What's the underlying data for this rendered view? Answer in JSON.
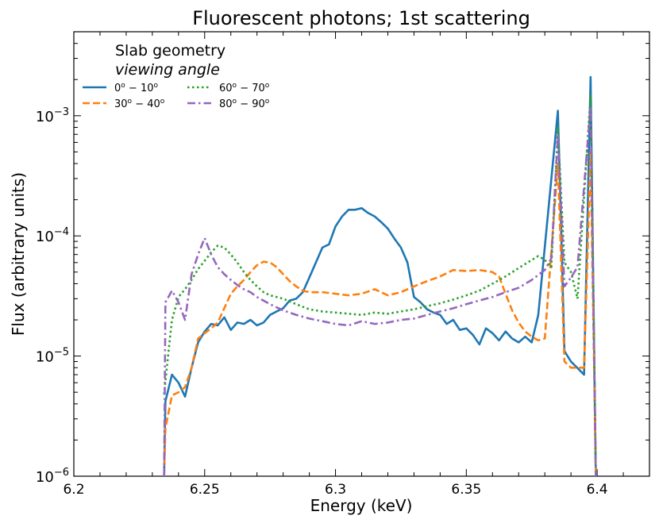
{
  "chart_data": {
    "type": "line",
    "title": "Fluorescent photons; 1st scattering",
    "xlabel": "Energy (keV)",
    "ylabel": "Flux (arbitrary units)",
    "xscale": "linear",
    "yscale": "log",
    "xlim": [
      6.2,
      6.42
    ],
    "ylim": [
      1e-06,
      0.005
    ],
    "xticks": [
      6.2,
      6.25,
      6.3,
      6.35,
      6.4
    ],
    "xtick_labels": [
      "6.2",
      "6.25",
      "6.3",
      "6.35",
      "6.4"
    ],
    "yticks": [
      1e-06,
      1e-05,
      0.0001,
      0.001
    ],
    "ytick_labels": [
      {
        "base": "10",
        "exp": "−6"
      },
      {
        "base": "10",
        "exp": "−5"
      },
      {
        "base": "10",
        "exp": "−4"
      },
      {
        "base": "10",
        "exp": "−3"
      }
    ],
    "legend": {
      "title_line1": "Slab geometry",
      "title_line2": "viewing angle",
      "placement": "top-left",
      "ncol": 2
    },
    "series": [
      {
        "name": "0° − 10°",
        "label_parts": [
          "0",
          "o",
          " − 10",
          "o"
        ],
        "color": "#1f77b4",
        "style": "solid",
        "points": [
          [
            6.2345,
            1e-06
          ],
          [
            6.235,
            4.2e-06
          ],
          [
            6.2375,
            7e-06
          ],
          [
            6.24,
            6e-06
          ],
          [
            6.2425,
            4.6e-06
          ],
          [
            6.245,
            8e-06
          ],
          [
            6.2475,
            1.3e-05
          ],
          [
            6.25,
            1.6e-05
          ],
          [
            6.2525,
            1.85e-05
          ],
          [
            6.255,
            1.8e-05
          ],
          [
            6.2575,
            2.1e-05
          ],
          [
            6.26,
            1.65e-05
          ],
          [
            6.2625,
            1.9e-05
          ],
          [
            6.265,
            1.85e-05
          ],
          [
            6.2675,
            2e-05
          ],
          [
            6.27,
            1.8e-05
          ],
          [
            6.2725,
            1.9e-05
          ],
          [
            6.275,
            2.2e-05
          ],
          [
            6.2775,
            2.35e-05
          ],
          [
            6.28,
            2.5e-05
          ],
          [
            6.2825,
            2.9e-05
          ],
          [
            6.285,
            3e-05
          ],
          [
            6.2875,
            3.4e-05
          ],
          [
            6.29,
            4.5e-05
          ],
          [
            6.2925,
            6e-05
          ],
          [
            6.295,
            8e-05
          ],
          [
            6.2975,
            8.5e-05
          ],
          [
            6.3,
            0.00012
          ],
          [
            6.3025,
            0.000145
          ],
          [
            6.305,
            0.000165
          ],
          [
            6.3075,
            0.000165
          ],
          [
            6.31,
            0.00017
          ],
          [
            6.3125,
            0.000155
          ],
          [
            6.315,
            0.000145
          ],
          [
            6.3175,
            0.00013
          ],
          [
            6.32,
            0.000115
          ],
          [
            6.3225,
            9.5e-05
          ],
          [
            6.325,
            8e-05
          ],
          [
            6.3275,
            6e-05
          ],
          [
            6.33,
            3.1e-05
          ],
          [
            6.3325,
            2.8e-05
          ],
          [
            6.335,
            2.45e-05
          ],
          [
            6.3375,
            2.3e-05
          ],
          [
            6.34,
            2.2e-05
          ],
          [
            6.3425,
            1.85e-05
          ],
          [
            6.345,
            2e-05
          ],
          [
            6.3475,
            1.65e-05
          ],
          [
            6.35,
            1.7e-05
          ],
          [
            6.3525,
            1.5e-05
          ],
          [
            6.355,
            1.25e-05
          ],
          [
            6.3575,
            1.7e-05
          ],
          [
            6.36,
            1.55e-05
          ],
          [
            6.3625,
            1.35e-05
          ],
          [
            6.365,
            1.6e-05
          ],
          [
            6.3675,
            1.4e-05
          ],
          [
            6.37,
            1.3e-05
          ],
          [
            6.3725,
            1.45e-05
          ],
          [
            6.375,
            1.3e-05
          ],
          [
            6.3775,
            2.2e-05
          ],
          [
            6.385,
            0.0011
          ],
          [
            6.3875,
            1.1e-05
          ],
          [
            6.39,
            9e-06
          ],
          [
            6.395,
            7e-06
          ],
          [
            6.3975,
            0.0021
          ],
          [
            6.3995,
            1e-06
          ]
        ]
      },
      {
        "name": "30° − 40°",
        "label_parts": [
          "30",
          "o",
          " − 40",
          "o"
        ],
        "color": "#ff7f0e",
        "style": "dashed",
        "points": [
          [
            6.2345,
            1e-06
          ],
          [
            6.235,
            2.5e-06
          ],
          [
            6.2375,
            4.7e-06
          ],
          [
            6.24,
            5e-06
          ],
          [
            6.2425,
            5.5e-06
          ],
          [
            6.245,
            8e-06
          ],
          [
            6.2475,
            1.4e-05
          ],
          [
            6.25,
            1.55e-05
          ],
          [
            6.2525,
            1.7e-05
          ],
          [
            6.255,
            1.9e-05
          ],
          [
            6.2575,
            2.5e-05
          ],
          [
            6.26,
            3.3e-05
          ],
          [
            6.2625,
            3.8e-05
          ],
          [
            6.265,
            4.3e-05
          ],
          [
            6.2675,
            5e-05
          ],
          [
            6.27,
            5.7e-05
          ],
          [
            6.2725,
            6.1e-05
          ],
          [
            6.275,
            6e-05
          ],
          [
            6.2775,
            5.5e-05
          ],
          [
            6.28,
            4.8e-05
          ],
          [
            6.2825,
            4.2e-05
          ],
          [
            6.285,
            3.8e-05
          ],
          [
            6.2875,
            3.5e-05
          ],
          [
            6.29,
            3.4e-05
          ],
          [
            6.295,
            3.4e-05
          ],
          [
            6.3,
            3.3e-05
          ],
          [
            6.305,
            3.2e-05
          ],
          [
            6.31,
            3.3e-05
          ],
          [
            6.315,
            3.6e-05
          ],
          [
            6.32,
            3.2e-05
          ],
          [
            6.325,
            3.4e-05
          ],
          [
            6.33,
            3.8e-05
          ],
          [
            6.335,
            4.2e-05
          ],
          [
            6.34,
            4.6e-05
          ],
          [
            6.345,
            5.2e-05
          ],
          [
            6.35,
            5.1e-05
          ],
          [
            6.355,
            5.2e-05
          ],
          [
            6.36,
            5e-05
          ],
          [
            6.3625,
            4.6e-05
          ],
          [
            6.365,
            3.3e-05
          ],
          [
            6.3675,
            2.4e-05
          ],
          [
            6.37,
            1.9e-05
          ],
          [
            6.3725,
            1.6e-05
          ],
          [
            6.375,
            1.45e-05
          ],
          [
            6.3775,
            1.35e-05
          ],
          [
            6.38,
            1.4e-05
          ],
          [
            6.385,
            0.0004
          ],
          [
            6.3875,
            9e-06
          ],
          [
            6.39,
            8e-06
          ],
          [
            6.395,
            8e-06
          ],
          [
            6.3975,
            0.0005
          ],
          [
            6.3995,
            1e-06
          ]
        ]
      },
      {
        "name": "60° − 70°",
        "label_parts": [
          "60",
          "o",
          " − 70",
          "o"
        ],
        "color": "#2ca02c",
        "style": "dotted",
        "points": [
          [
            6.2345,
            4.8e-06
          ],
          [
            6.236,
            1e-05
          ],
          [
            6.2375,
            2e-05
          ],
          [
            6.24,
            3.1e-05
          ],
          [
            6.2425,
            3.6e-05
          ],
          [
            6.245,
            4.3e-05
          ],
          [
            6.2475,
            5.3e-05
          ],
          [
            6.25,
            6.2e-05
          ],
          [
            6.2525,
            7.3e-05
          ],
          [
            6.255,
            8.3e-05
          ],
          [
            6.2575,
            8e-05
          ],
          [
            6.26,
            7e-05
          ],
          [
            6.2625,
            6e-05
          ],
          [
            6.265,
            5e-05
          ],
          [
            6.2675,
            4.3e-05
          ],
          [
            6.27,
            3.8e-05
          ],
          [
            6.2725,
            3.4e-05
          ],
          [
            6.275,
            3.2e-05
          ],
          [
            6.28,
            3e-05
          ],
          [
            6.285,
            2.7e-05
          ],
          [
            6.29,
            2.45e-05
          ],
          [
            6.295,
            2.35e-05
          ],
          [
            6.3,
            2.3e-05
          ],
          [
            6.305,
            2.25e-05
          ],
          [
            6.31,
            2.2e-05
          ],
          [
            6.315,
            2.3e-05
          ],
          [
            6.32,
            2.25e-05
          ],
          [
            6.325,
            2.35e-05
          ],
          [
            6.33,
            2.45e-05
          ],
          [
            6.335,
            2.6e-05
          ],
          [
            6.34,
            2.75e-05
          ],
          [
            6.345,
            2.95e-05
          ],
          [
            6.35,
            3.2e-05
          ],
          [
            6.355,
            3.5e-05
          ],
          [
            6.36,
            4e-05
          ],
          [
            6.365,
            4.6e-05
          ],
          [
            6.37,
            5.4e-05
          ],
          [
            6.375,
            6.3e-05
          ],
          [
            6.3775,
            6.8e-05
          ],
          [
            6.38,
            6.3e-05
          ],
          [
            6.3825,
            5.5e-05
          ],
          [
            6.385,
            0.0008
          ],
          [
            6.3875,
            6e-05
          ],
          [
            6.39,
            5e-05
          ],
          [
            6.3925,
            3e-05
          ],
          [
            6.3975,
            0.0015
          ],
          [
            6.3995,
            1e-06
          ]
        ]
      },
      {
        "name": "80° − 90°",
        "label_parts": [
          "80",
          "o",
          " − 90",
          "o"
        ],
        "color": "#9467bd",
        "style": "dashdot",
        "points": [
          [
            6.2345,
            1e-06
          ],
          [
            6.235,
            2.8e-05
          ],
          [
            6.2375,
            3.5e-05
          ],
          [
            6.24,
            2.8e-05
          ],
          [
            6.2425,
            2e-05
          ],
          [
            6.245,
            4.8e-05
          ],
          [
            6.2475,
            7e-05
          ],
          [
            6.25,
            9.6e-05
          ],
          [
            6.2525,
            7e-05
          ],
          [
            6.255,
            5.5e-05
          ],
          [
            6.2575,
            4.8e-05
          ],
          [
            6.26,
            4.3e-05
          ],
          [
            6.2625,
            3.9e-05
          ],
          [
            6.265,
            3.6e-05
          ],
          [
            6.2675,
            3.4e-05
          ],
          [
            6.27,
            3.1e-05
          ],
          [
            6.275,
            2.7e-05
          ],
          [
            6.28,
            2.4e-05
          ],
          [
            6.285,
            2.2e-05
          ],
          [
            6.29,
            2.05e-05
          ],
          [
            6.295,
            1.95e-05
          ],
          [
            6.3,
            1.85e-05
          ],
          [
            6.305,
            1.8e-05
          ],
          [
            6.31,
            1.95e-05
          ],
          [
            6.315,
            1.85e-05
          ],
          [
            6.32,
            1.9e-05
          ],
          [
            6.325,
            2e-05
          ],
          [
            6.33,
            2.05e-05
          ],
          [
            6.335,
            2.2e-05
          ],
          [
            6.34,
            2.35e-05
          ],
          [
            6.345,
            2.5e-05
          ],
          [
            6.35,
            2.7e-05
          ],
          [
            6.355,
            2.9e-05
          ],
          [
            6.36,
            3.1e-05
          ],
          [
            6.365,
            3.4e-05
          ],
          [
            6.37,
            3.7e-05
          ],
          [
            6.375,
            4.3e-05
          ],
          [
            6.38,
            5.2e-05
          ],
          [
            6.3825,
            6.5e-05
          ],
          [
            6.385,
            0.0007
          ],
          [
            6.3875,
            3.8e-05
          ],
          [
            6.39,
            4.5e-05
          ],
          [
            6.3925,
            5.5e-05
          ],
          [
            6.3975,
            0.0012
          ],
          [
            6.3995,
            1e-06
          ]
        ]
      }
    ]
  }
}
